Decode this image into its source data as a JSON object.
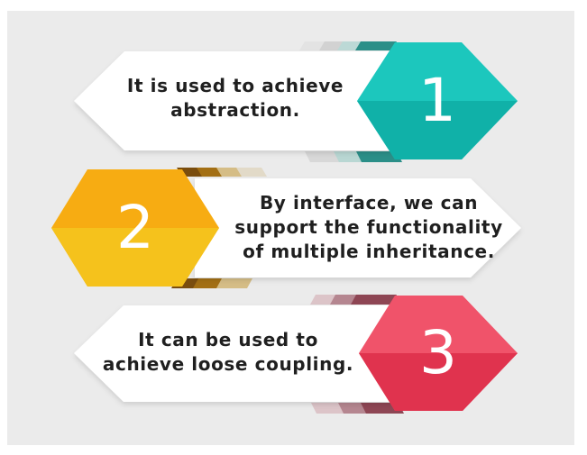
{
  "items": [
    {
      "number": "1",
      "text": "It is used to achieve abstraction.",
      "color": "#1cc7bd"
    },
    {
      "number": "2",
      "text": "By interface, we can support the functionality of multiple inheritance.",
      "color": "#f7ac12"
    },
    {
      "number": "3",
      "text": "It can be used to achieve loose coupling.",
      "color": "#ee4c62"
    }
  ]
}
